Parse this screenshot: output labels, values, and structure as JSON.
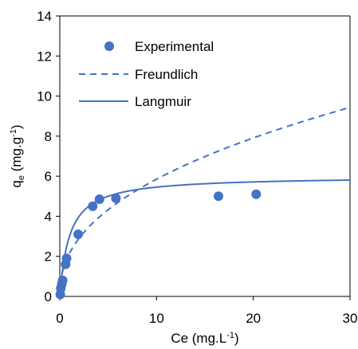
{
  "chart_data": {
    "type": "scatter",
    "xlabel": "Ce (mg.L",
    "xlabel_sup": "-1",
    "xlabel_end": ")",
    "ylabel": "q",
    "ylabel_sub": "e",
    "ylabel_mid": " (mg.g",
    "ylabel_sup": "-1",
    "ylabel_end": ")",
    "xlim": [
      0,
      30
    ],
    "ylim": [
      0,
      14
    ],
    "x_ticks": [
      0,
      10,
      20,
      30
    ],
    "y_ticks": [
      0,
      2,
      4,
      6,
      8,
      10,
      12,
      14
    ],
    "x_tick_labels": [
      "0",
      "10",
      "20",
      "30"
    ],
    "y_tick_labels": [
      "0",
      "2",
      "4",
      "6",
      "8",
      "10",
      "12",
      "14"
    ],
    "grid": false,
    "legend_position": "top-left",
    "series": [
      {
        "name": "Experimental",
        "kind": "markers",
        "color": "#4472C4",
        "x": [
          0.05,
          0.1,
          0.2,
          0.3,
          0.6,
          0.7,
          1.9,
          3.4,
          4.1,
          5.8,
          16.4,
          20.3
        ],
        "y": [
          0.1,
          0.4,
          0.6,
          0.8,
          1.6,
          1.9,
          3.1,
          4.5,
          4.85,
          4.9,
          5.0,
          5.1
        ]
      },
      {
        "name": "Freundlich",
        "kind": "dashed",
        "color": "#4472C4",
        "model": "freundlich",
        "params": {
          "Kf": 2.15,
          "n": 2.3
        }
      },
      {
        "name": "Langmuir",
        "kind": "solid",
        "color": "#4472C4",
        "model": "langmuir",
        "params": {
          "qmax": 6.0,
          "KL": 1.0
        }
      }
    ]
  }
}
